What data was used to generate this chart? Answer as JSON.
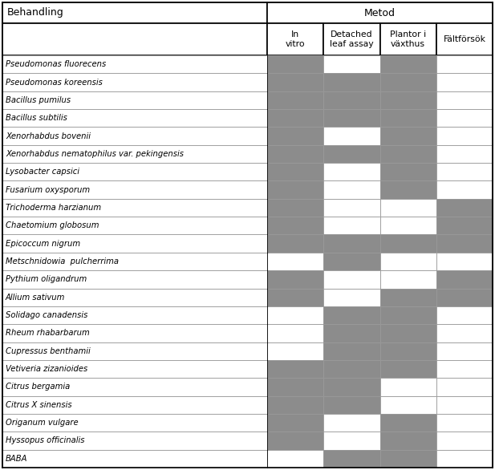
{
  "title_behandling": "Behandling",
  "title_metod": "Metod",
  "col_headers": [
    "In\nvitro",
    "Detached\nleaf assay",
    "Plantor i\nväxthus",
    "Fältförsök"
  ],
  "rows": [
    {
      "name": "Pseudomonas fluorecens",
      "italic": true,
      "cells": [
        1,
        0,
        1,
        0
      ]
    },
    {
      "name": "Pseudomonas koreensis",
      "italic": true,
      "cells": [
        1,
        1,
        1,
        0
      ]
    },
    {
      "name": "Bacillus pumilus",
      "italic": true,
      "cells": [
        1,
        1,
        1,
        0
      ]
    },
    {
      "name": "Bacillus subtilis",
      "italic": true,
      "cells": [
        1,
        1,
        1,
        0
      ]
    },
    {
      "name": "Xenorhabdus bovenii",
      "italic": true,
      "cells": [
        1,
        0,
        1,
        0
      ]
    },
    {
      "name": "Xenorhabdus nematophilus var. pekingensis",
      "italic": true,
      "cells": [
        1,
        1,
        1,
        0
      ]
    },
    {
      "name": "Lysobacter capsici",
      "italic": true,
      "cells": [
        1,
        0,
        1,
        0
      ]
    },
    {
      "name": "Fusarium oxysporum",
      "italic": true,
      "cells": [
        1,
        0,
        1,
        0
      ]
    },
    {
      "name": "Trichoderma harzianum",
      "italic": true,
      "cells": [
        1,
        0,
        0,
        1
      ]
    },
    {
      "name": "Chaetomium globosum",
      "italic": true,
      "cells": [
        1,
        0,
        0,
        1
      ]
    },
    {
      "name": "Epicoccum nigrum",
      "italic": true,
      "cells": [
        1,
        1,
        1,
        1
      ]
    },
    {
      "name": "Metschnidowia  pulcherrima",
      "italic": true,
      "cells": [
        0,
        1,
        0,
        0
      ]
    },
    {
      "name": "Pythium oligandrum",
      "italic": true,
      "cells": [
        1,
        0,
        0,
        1
      ]
    },
    {
      "name": "Allium sativum",
      "italic": true,
      "cells": [
        1,
        0,
        1,
        1
      ]
    },
    {
      "name": "Solidago canadensis",
      "italic": true,
      "cells": [
        0,
        1,
        1,
        0
      ]
    },
    {
      "name": "Rheum rhabarbarum",
      "italic": true,
      "cells": [
        0,
        1,
        1,
        0
      ]
    },
    {
      "name": "Cupressus benthamii",
      "italic": true,
      "cells": [
        0,
        1,
        1,
        0
      ]
    },
    {
      "name": "Vetiveria zizanioides",
      "italic": true,
      "cells": [
        1,
        1,
        1,
        0
      ]
    },
    {
      "name": "Citrus bergamia",
      "italic": true,
      "cells": [
        1,
        1,
        0,
        0
      ]
    },
    {
      "name": "Citrus X sinensis",
      "italic": true,
      "cells": [
        1,
        1,
        0,
        0
      ]
    },
    {
      "name": "Origanum vulgare",
      "italic": true,
      "cells": [
        1,
        0,
        1,
        0
      ]
    },
    {
      "name": "Hyssopus officinalis",
      "italic": true,
      "cells": [
        1,
        0,
        1,
        0
      ]
    },
    {
      "name": "BABA",
      "italic": true,
      "cells": [
        0,
        1,
        1,
        0
      ]
    }
  ],
  "fill_color": "#8c8c8c",
  "empty_color": "#ffffff",
  "bg_color": "#ffffff",
  "border_color": "#999999",
  "text_color": "#000000",
  "header_bg": "#ffffff",
  "fig_width": 6.17,
  "fig_height": 5.86,
  "dpi": 100
}
